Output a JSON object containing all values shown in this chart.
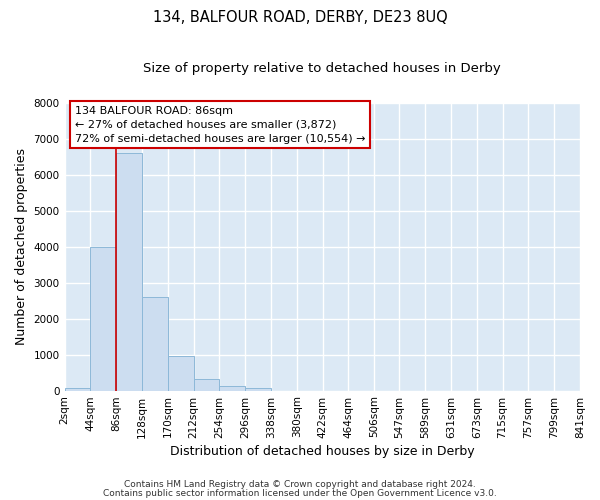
{
  "title": "134, BALFOUR ROAD, DERBY, DE23 8UQ",
  "subtitle": "Size of property relative to detached houses in Derby",
  "xlabel": "Distribution of detached houses by size in Derby",
  "ylabel": "Number of detached properties",
  "bin_edges": [
    2,
    44,
    86,
    128,
    170,
    212,
    254,
    296,
    338,
    380,
    422,
    464,
    506,
    547,
    589,
    631,
    673,
    715,
    757,
    799,
    841
  ],
  "bar_heights": [
    70,
    4000,
    6600,
    2600,
    970,
    330,
    130,
    70,
    0,
    0,
    0,
    0,
    0,
    0,
    0,
    0,
    0,
    0,
    0,
    0
  ],
  "bar_color": "#ccddf0",
  "bar_edgecolor": "#8db8d8",
  "vline_x": 86,
  "vline_color": "#cc0000",
  "ylim": [
    0,
    8000
  ],
  "yticks": [
    0,
    1000,
    2000,
    3000,
    4000,
    5000,
    6000,
    7000,
    8000
  ],
  "annotation_title": "134 BALFOUR ROAD: 86sqm",
  "annotation_line1": "← 27% of detached houses are smaller (3,872)",
  "annotation_line2": "72% of semi-detached houses are larger (10,554) →",
  "annotation_box_facecolor": "white",
  "annotation_box_edgecolor": "#cc0000",
  "figure_facecolor": "#ffffff",
  "axes_facecolor": "#dce9f5",
  "grid_color": "#ffffff",
  "title_fontsize": 10.5,
  "subtitle_fontsize": 9.5,
  "axis_label_fontsize": 9,
  "tick_label_fontsize": 7.5,
  "footnote1": "Contains HM Land Registry data © Crown copyright and database right 2024.",
  "footnote2": "Contains public sector information licensed under the Open Government Licence v3.0."
}
